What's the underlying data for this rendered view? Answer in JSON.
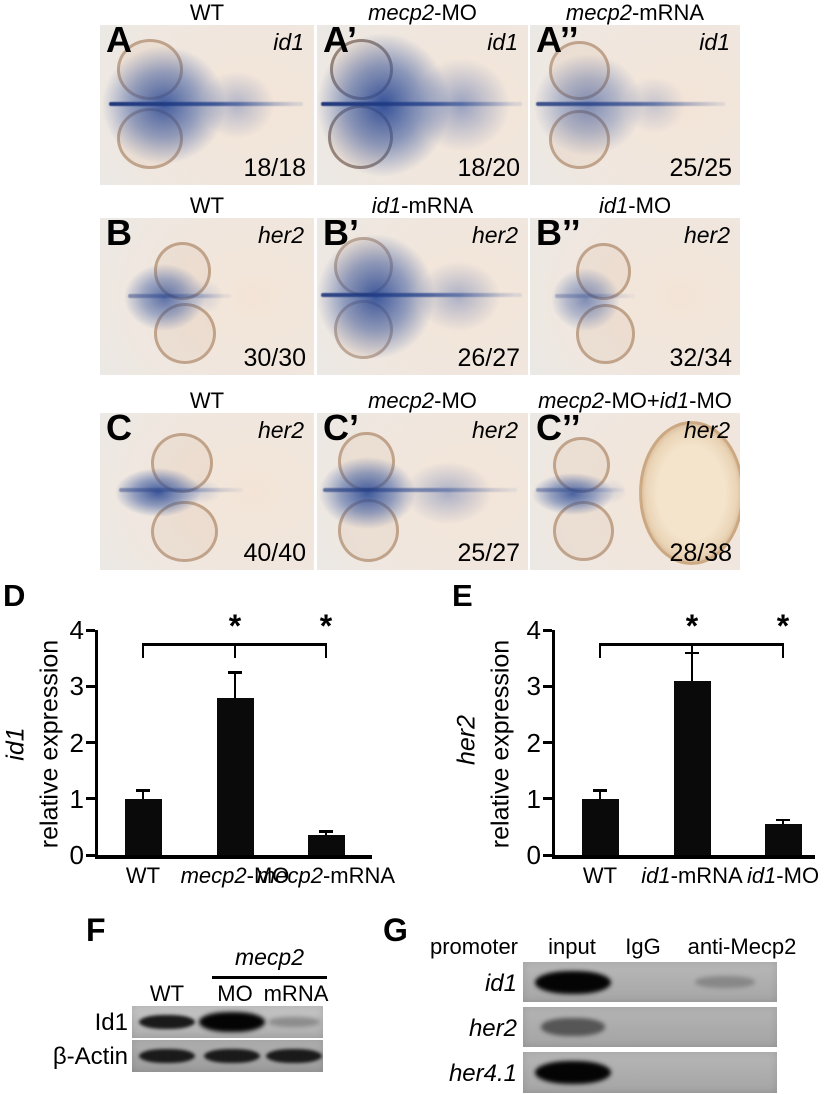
{
  "insitu": {
    "rows": [
      {
        "headers": [
          {
            "segs": [
              {
                "t": "WT"
              }
            ]
          },
          {
            "segs": [
              {
                "t": "mecp2",
                "i": true
              },
              {
                "t": "-MO"
              }
            ]
          },
          {
            "segs": [
              {
                "t": "mecp2",
                "i": true
              },
              {
                "t": "-mRNA"
              }
            ]
          }
        ],
        "panels": [
          {
            "label": "A",
            "gene": "id1",
            "count": "18/18"
          },
          {
            "label": "A’",
            "gene": "id1",
            "count": "18/20"
          },
          {
            "label": "A’’",
            "gene": "id1",
            "count": "25/25"
          }
        ]
      },
      {
        "headers": [
          {
            "segs": [
              {
                "t": "WT"
              }
            ]
          },
          {
            "segs": [
              {
                "t": "id1",
                "i": true
              },
              {
                "t": "-mRNA"
              }
            ]
          },
          {
            "segs": [
              {
                "t": "id1",
                "i": true
              },
              {
                "t": "-MO"
              }
            ]
          }
        ],
        "panels": [
          {
            "label": "B",
            "gene": "her2",
            "count": "30/30"
          },
          {
            "label": "B’",
            "gene": "her2",
            "count": "26/27"
          },
          {
            "label": "B’’",
            "gene": "her2",
            "count": "32/34"
          }
        ]
      },
      {
        "headers": [
          {
            "segs": [
              {
                "t": "WT"
              }
            ]
          },
          {
            "segs": [
              {
                "t": "mecp2",
                "i": true
              },
              {
                "t": "-MO"
              }
            ]
          },
          {
            "segs": [
              {
                "t": "mecp2",
                "i": true
              },
              {
                "t": "-MO+"
              },
              {
                "t": "id1",
                "i": true
              },
              {
                "t": "-MO"
              }
            ]
          }
        ],
        "panels": [
          {
            "label": "C",
            "gene": "her2",
            "count": "40/40"
          },
          {
            "label": "C’",
            "gene": "her2",
            "count": "25/27"
          },
          {
            "label": "C’’",
            "gene": "her2",
            "count": "28/38"
          }
        ]
      }
    ]
  },
  "chart_data": [
    {
      "type": "bar",
      "panel_label": "D",
      "ylabel_gene": "id1",
      "ylabel_text": "relative expression",
      "categories": [
        "WT",
        "mecp2-MO",
        "mecp2-mRNA"
      ],
      "categories_rich": [
        [
          {
            "t": "WT"
          }
        ],
        [
          {
            "t": "mecp2",
            "i": true
          },
          {
            "t": "-MO"
          }
        ],
        [
          {
            "t": "mecp2",
            "i": true
          },
          {
            "t": "-mRNA"
          }
        ]
      ],
      "values": [
        1.0,
        2.8,
        0.35
      ],
      "errors": [
        0.15,
        0.45,
        0.07
      ],
      "ylim": [
        0,
        4
      ],
      "yticks": [
        0,
        1,
        2,
        3,
        4
      ],
      "grid": false,
      "bar_color": "#0a0a0a",
      "significance": {
        "symbol": "*",
        "span": [
          0,
          2
        ],
        "ticks": [
          0,
          1,
          2
        ],
        "stars": [
          1,
          2
        ]
      }
    },
    {
      "type": "bar",
      "panel_label": "E",
      "ylabel_gene": "her2",
      "ylabel_text": "relative expression",
      "categories": [
        "WT",
        "id1-mRNA",
        "id1-MO"
      ],
      "categories_rich": [
        [
          {
            "t": "WT"
          }
        ],
        [
          {
            "t": "id1",
            "i": true
          },
          {
            "t": "-mRNA"
          }
        ],
        [
          {
            "t": "id1",
            "i": true
          },
          {
            "t": "-MO"
          }
        ]
      ],
      "values": [
        1.0,
        3.1,
        0.55
      ],
      "errors": [
        0.15,
        0.5,
        0.08
      ],
      "ylim": [
        0,
        4
      ],
      "yticks": [
        0,
        1,
        2,
        3,
        4
      ],
      "grid": false,
      "bar_color": "#0a0a0a",
      "significance": {
        "symbol": "*",
        "span": [
          0,
          2
        ],
        "ticks": [
          0,
          1,
          2
        ],
        "stars": [
          1,
          2
        ]
      }
    }
  ],
  "western_blot": {
    "panel_label": "F",
    "group_header": {
      "segs": [
        {
          "t": "mecp2",
          "i": true
        }
      ]
    },
    "lane_headers": [
      "WT",
      "MO",
      "mRNA"
    ],
    "rows": [
      {
        "target": "Id1",
        "WT": "strong",
        "MO": "very-strong",
        "mRNA": "faint"
      },
      {
        "target": "β-Actin",
        "WT": "strong",
        "MO": "strong",
        "mRNA": "strong"
      }
    ]
  },
  "chip_assay": {
    "panel_label": "G",
    "column_headers": [
      "promoter",
      "input",
      "IgG",
      "anti-Mecp2"
    ],
    "rows": [
      {
        "promoter": "id1",
        "input": "very-strong",
        "IgG": "none",
        "antiMecp2": "faint"
      },
      {
        "promoter": "her2",
        "input": "medium",
        "IgG": "none",
        "antiMecp2": "none"
      },
      {
        "promoter": "her4.1",
        "input": "very-strong",
        "IgG": "none",
        "antiMecp2": "none"
      }
    ]
  }
}
